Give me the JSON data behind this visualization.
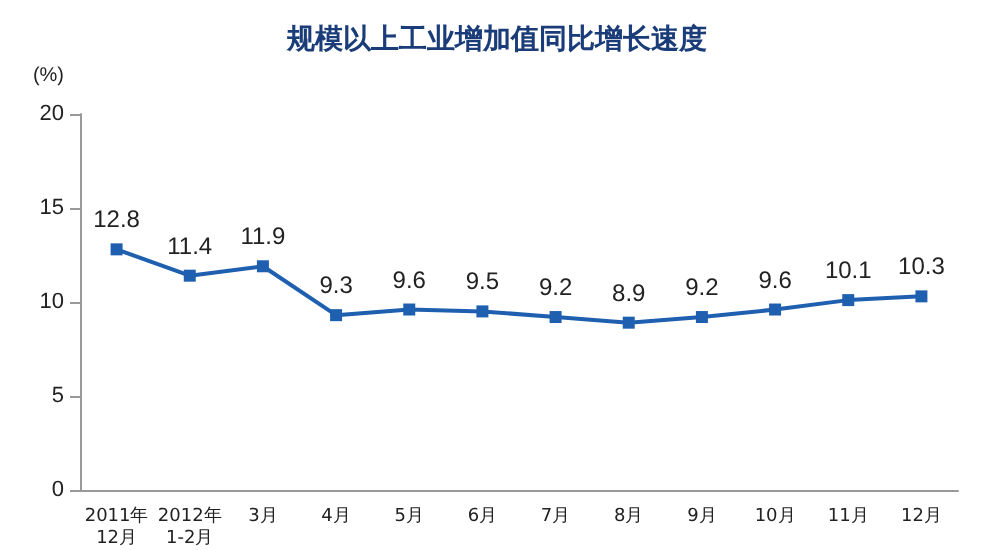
{
  "chart_data": {
    "type": "line",
    "title": "规模以上工业增加值同比增长速度",
    "ylabel": "(%)",
    "categories": [
      "2011年\n12月",
      "2012年\n1-2月",
      "3月",
      "4月",
      "5月",
      "6月",
      "7月",
      "8月",
      "9月",
      "10月",
      "11月",
      "12月"
    ],
    "series": [
      {
        "color": "#1f5fb0",
        "values": [
          12.8,
          11.4,
          11.9,
          9.3,
          9.6,
          9.5,
          9.2,
          8.9,
          9.2,
          9.6,
          10.1,
          10.3
        ]
      }
    ],
    "ylim": [
      0,
      20
    ],
    "yticks": [
      0,
      5,
      10,
      15,
      20
    ],
    "grid": false,
    "marker": "square",
    "line_style": "solid",
    "data_labels": true
  }
}
